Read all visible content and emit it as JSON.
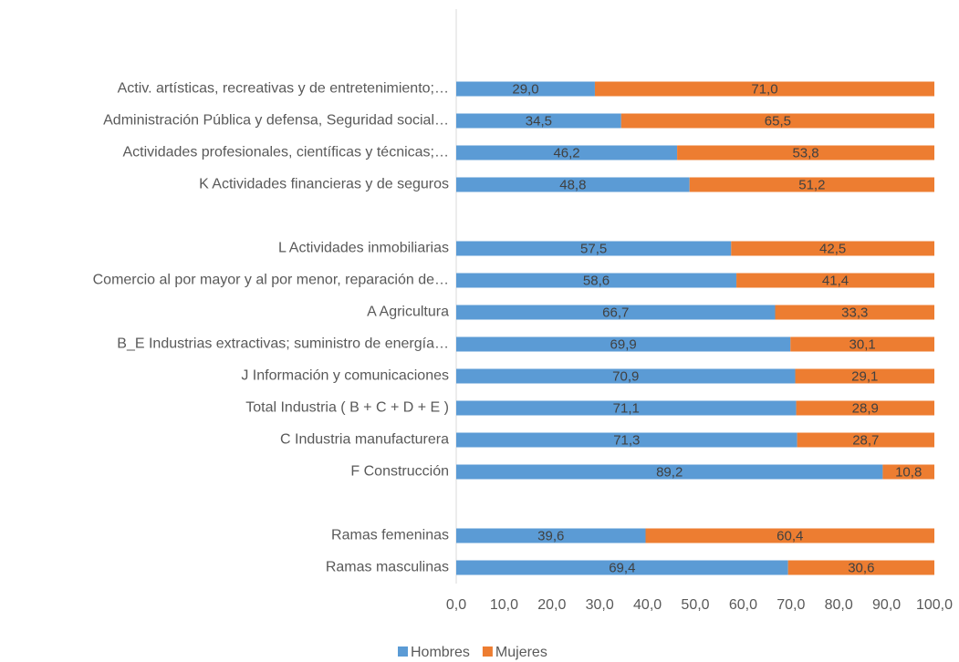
{
  "chart_data": {
    "type": "stacked_barh",
    "categories": [
      null,
      null,
      "Activ. artísticas, recreativas y de entretenimiento;…",
      "Administración Pública y defensa, Seguridad social…",
      "Actividades profesionales, científicas y técnicas;…",
      "K Actividades financieras y de seguros",
      null,
      "L Actividades inmobiliarias",
      "Comercio al por mayor y al por menor, reparación de…",
      "A Agricultura",
      "B_E Industrias extractivas; suministro de energía…",
      "J Información y comunicaciones",
      "Total Industria ( B + C + D + E )",
      "C Industria manufacturera",
      "F Construcción",
      null,
      "Ramas femeninas",
      "Ramas masculinas"
    ],
    "series": [
      {
        "name": "Hombres",
        "color": "#5b9bd5",
        "values": [
          null,
          null,
          29.0,
          34.5,
          46.2,
          48.8,
          null,
          57.5,
          58.6,
          66.7,
          69.9,
          70.9,
          71.1,
          71.3,
          89.2,
          null,
          39.6,
          69.4
        ],
        "value_labels": [
          null,
          null,
          "29,0",
          "34,5",
          "46,2",
          "48,8",
          null,
          "57,5",
          "58,6",
          "66,7",
          "69,9",
          "70,9",
          "71,1",
          "71,3",
          "89,2",
          null,
          "39,6",
          "69,4"
        ]
      },
      {
        "name": "Mujeres",
        "color": "#ed7d31",
        "values": [
          null,
          null,
          71.0,
          65.5,
          53.8,
          51.2,
          null,
          42.5,
          41.4,
          33.3,
          30.1,
          29.1,
          28.9,
          28.7,
          10.8,
          null,
          60.4,
          30.6
        ],
        "value_labels": [
          null,
          null,
          "71,0",
          "65,5",
          "53,8",
          "51,2",
          null,
          "42,5",
          "41,4",
          "33,3",
          "30,1",
          "29,1",
          "28,9",
          "28,7",
          "10,8",
          null,
          "60,4",
          "30,6"
        ]
      }
    ],
    "xlim": [
      0,
      100
    ],
    "xticks": [
      {
        "value": 0,
        "label": "0,0"
      },
      {
        "value": 10,
        "label": "10,0"
      },
      {
        "value": 20,
        "label": "20,0"
      },
      {
        "value": 30,
        "label": "30,0"
      },
      {
        "value": 40,
        "label": "40,0"
      },
      {
        "value": 50,
        "label": "50,0"
      },
      {
        "value": 60,
        "label": "60,0"
      },
      {
        "value": 70,
        "label": "70,0"
      },
      {
        "value": 80,
        "label": "80,0"
      },
      {
        "value": 90,
        "label": "90,0"
      },
      {
        "value": 100,
        "label": "100,0"
      }
    ],
    "legend": "bottom"
  }
}
